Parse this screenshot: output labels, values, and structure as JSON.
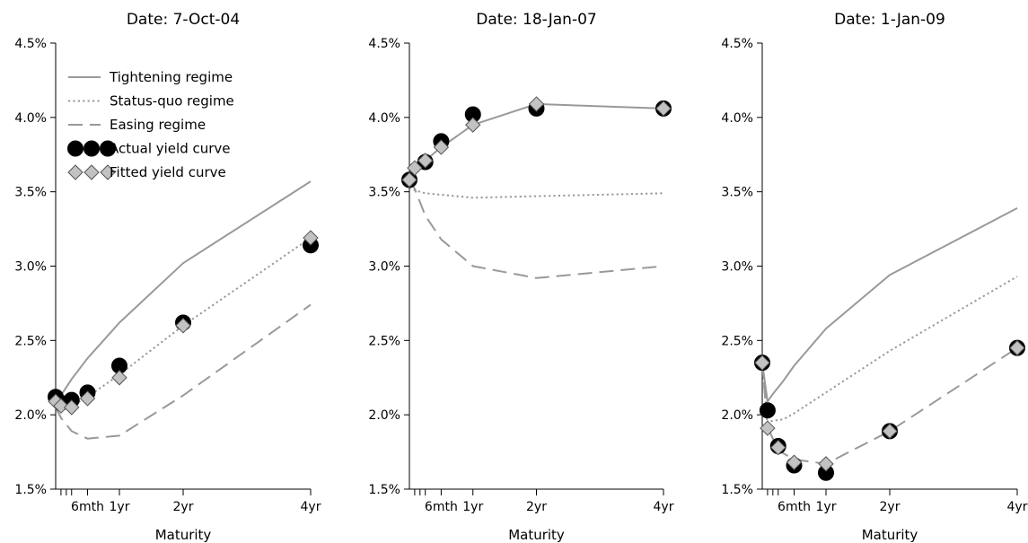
{
  "chart_data": [
    {
      "type": "line",
      "title": "Date: 7-Oct-04",
      "xlabel": "Maturity",
      "ylabel": "",
      "ylim": [
        1.5,
        4.5
      ],
      "yticks": [
        "1.5%",
        "2.0%",
        "2.5%",
        "3.0%",
        "3.5%",
        "4.0%",
        "4.5%"
      ],
      "xlim": [
        0,
        48
      ],
      "xticks": [
        {
          "x": 1,
          "label": ""
        },
        {
          "x": 2,
          "label": ""
        },
        {
          "x": 3,
          "label": ""
        },
        {
          "x": 6,
          "label": "6mth"
        },
        {
          "x": 12,
          "label": "1yr"
        },
        {
          "x": 24,
          "label": "2yr"
        },
        {
          "x": 48,
          "label": "4yr"
        }
      ],
      "legend": {
        "placement": "top-left",
        "entries": [
          "Tightening regime",
          "Status-quo regime",
          "Easing regime",
          "Actual yield curve",
          "Fitted yield curve"
        ]
      },
      "series": [
        {
          "name": "Tightening regime",
          "style": "solid",
          "x": [
            0,
            1,
            3,
            6,
            12,
            24,
            48
          ],
          "y": [
            2.09,
            2.13,
            2.24,
            2.38,
            2.62,
            3.02,
            3.57
          ]
        },
        {
          "name": "Status-quo regime",
          "style": "dotted",
          "x": [
            0,
            1,
            3,
            6,
            12,
            24,
            48
          ],
          "y": [
            2.06,
            2.05,
            2.06,
            2.12,
            2.27,
            2.6,
            3.19
          ]
        },
        {
          "name": "Easing regime",
          "style": "dashed",
          "x": [
            0,
            1,
            3,
            6,
            12,
            24,
            48
          ],
          "y": [
            2.05,
            1.98,
            1.89,
            1.84,
            1.86,
            2.13,
            2.74
          ]
        },
        {
          "name": "Actual yield curve",
          "style": "markers-circle",
          "x": [
            0,
            1,
            3,
            6,
            12,
            24,
            48
          ],
          "y": [
            2.12,
            2.08,
            2.1,
            2.15,
            2.33,
            2.62,
            3.14
          ]
        },
        {
          "name": "Fitted yield curve",
          "style": "markers-diamond",
          "x": [
            0,
            1,
            3,
            6,
            12,
            24,
            48
          ],
          "y": [
            2.09,
            2.06,
            2.05,
            2.11,
            2.25,
            2.6,
            3.19
          ]
        }
      ]
    },
    {
      "type": "line",
      "title": "Date: 18-Jan-07",
      "xlabel": "Maturity",
      "ylabel": "",
      "ylim": [
        1.5,
        4.5
      ],
      "yticks": [
        "1.5%",
        "2.0%",
        "2.5%",
        "3.0%",
        "3.5%",
        "4.0%",
        "4.5%"
      ],
      "xlim": [
        0,
        48
      ],
      "xticks": [
        {
          "x": 1,
          "label": ""
        },
        {
          "x": 2,
          "label": ""
        },
        {
          "x": 3,
          "label": ""
        },
        {
          "x": 6,
          "label": "6mth"
        },
        {
          "x": 12,
          "label": "1yr"
        },
        {
          "x": 24,
          "label": "2yr"
        },
        {
          "x": 48,
          "label": "4yr"
        }
      ],
      "series": [
        {
          "name": "Tightening regime",
          "style": "solid",
          "x": [
            0,
            1,
            3,
            6,
            12,
            24,
            48
          ],
          "y": [
            3.58,
            3.66,
            3.71,
            3.8,
            3.95,
            4.09,
            4.06
          ]
        },
        {
          "name": "Status-quo regime",
          "style": "dotted",
          "x": [
            0,
            1,
            3,
            6,
            12,
            24,
            48
          ],
          "y": [
            3.53,
            3.51,
            3.49,
            3.48,
            3.46,
            3.47,
            3.49
          ]
        },
        {
          "name": "Easing regime",
          "style": "dashed",
          "x": [
            0,
            1,
            3,
            6,
            12,
            24,
            48
          ],
          "y": [
            3.58,
            3.52,
            3.34,
            3.18,
            3.0,
            2.92,
            3.0
          ]
        },
        {
          "name": "Actual yield curve",
          "style": "markers-circle",
          "x": [
            0,
            3,
            6,
            12,
            24,
            48
          ],
          "y": [
            3.58,
            3.7,
            3.84,
            4.02,
            4.06,
            4.06
          ]
        },
        {
          "name": "Fitted yield curve",
          "style": "markers-diamond",
          "x": [
            0,
            1,
            3,
            6,
            12,
            24,
            48
          ],
          "y": [
            3.58,
            3.66,
            3.71,
            3.8,
            3.95,
            4.09,
            4.06
          ]
        }
      ]
    },
    {
      "type": "line",
      "title": "Date: 1-Jan-09",
      "xlabel": "Maturity",
      "ylabel": "",
      "ylim": [
        1.5,
        4.5
      ],
      "yticks": [
        "1.5%",
        "2.0%",
        "2.5%",
        "3.0%",
        "3.5%",
        "4.0%",
        "4.5%"
      ],
      "xlim": [
        0,
        48
      ],
      "xticks": [
        {
          "x": 1,
          "label": ""
        },
        {
          "x": 2,
          "label": ""
        },
        {
          "x": 3,
          "label": ""
        },
        {
          "x": 6,
          "label": "6mth"
        },
        {
          "x": 12,
          "label": "1yr"
        },
        {
          "x": 24,
          "label": "2yr"
        },
        {
          "x": 48,
          "label": "4yr"
        }
      ],
      "series": [
        {
          "name": "Tightening regime",
          "style": "solid",
          "x": [
            0,
            1,
            2,
            4,
            6,
            12,
            24,
            48
          ],
          "y": [
            2.35,
            2.09,
            2.14,
            2.23,
            2.33,
            2.58,
            2.94,
            3.39
          ]
        },
        {
          "name": "Status-quo regime",
          "style": "dotted",
          "x": [
            0,
            1,
            2,
            4,
            6,
            12,
            24,
            48
          ],
          "y": [
            2.35,
            1.95,
            1.96,
            1.97,
            2.01,
            2.15,
            2.43,
            2.93
          ]
        },
        {
          "name": "Easing regime",
          "style": "dashed",
          "x": [
            0,
            1,
            2,
            4,
            6,
            12,
            24,
            48
          ],
          "y": [
            2.35,
            1.92,
            1.84,
            1.74,
            1.7,
            1.67,
            1.89,
            2.45
          ]
        },
        {
          "name": "Actual yield curve",
          "style": "markers-circle",
          "x": [
            0,
            1,
            3,
            6,
            12,
            24,
            48
          ],
          "y": [
            2.35,
            2.03,
            1.79,
            1.66,
            1.61,
            1.89,
            2.45
          ]
        },
        {
          "name": "Fitted yield curve",
          "style": "markers-diamond",
          "x": [
            0,
            1,
            3,
            6,
            12,
            24,
            48
          ],
          "y": [
            2.35,
            1.91,
            1.78,
            1.68,
            1.67,
            1.89,
            2.45
          ]
        }
      ]
    }
  ]
}
